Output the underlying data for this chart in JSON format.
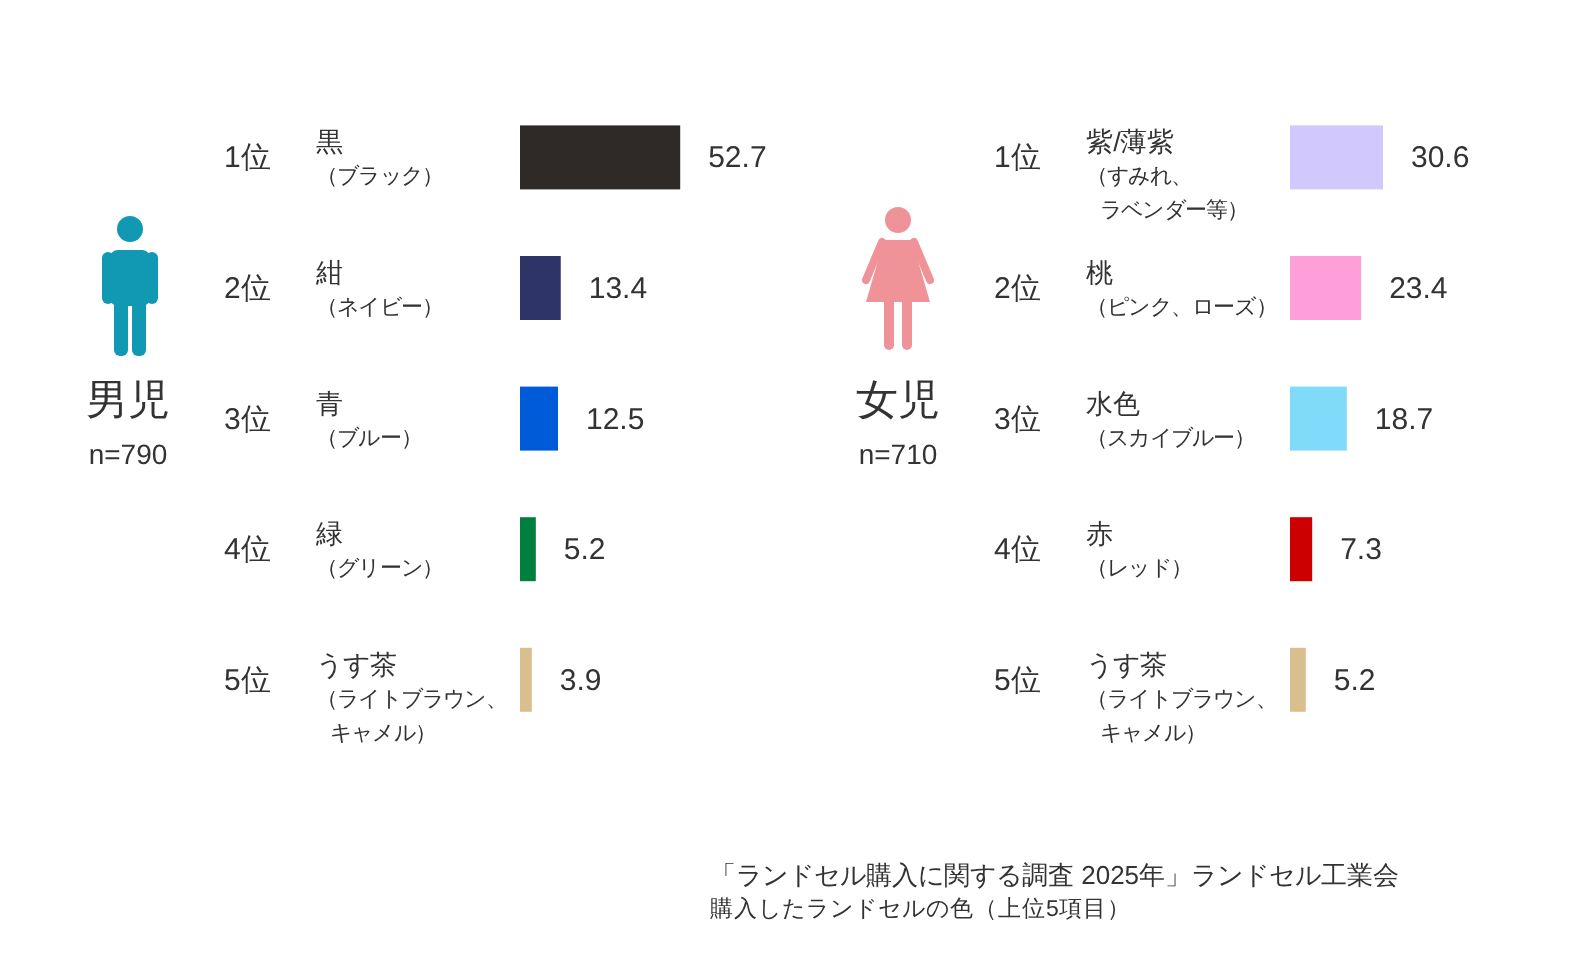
{
  "chart_data": [
    {
      "type": "bar",
      "orientation": "horizontal",
      "title": "男児",
      "subtitle": "n=790",
      "categories": [
        "黒（ブラック）",
        "紺（ネイビー）",
        "青（ブルー）",
        "緑（グリーン）",
        "うす茶（ライトブラウン、キャメル）"
      ],
      "values": [
        52.7,
        13.4,
        12.5,
        5.2,
        3.9
      ],
      "colors": [
        "#2f2a28",
        "#2e3368",
        "#005bd8",
        "#007f3f",
        "#d9bf8f"
      ],
      "data_labels": true,
      "annotations": [
        "1位",
        "2位",
        "3位",
        "4位",
        "5位"
      ]
    },
    {
      "type": "bar",
      "orientation": "horizontal",
      "title": "女児",
      "subtitle": "n=710",
      "categories": [
        "紫/薄紫（すみれ、ラベンダー等）",
        "桃（ピンク、ローズ）",
        "水色（スカイブルー）",
        "赤（レッド）",
        "うす茶（ライトブラウン、キャメル）"
      ],
      "values": [
        30.6,
        23.4,
        18.7,
        7.3,
        5.2
      ],
      "colors": [
        "#d1c9fd",
        "#ff9fd9",
        "#80dbfa",
        "#cc0000",
        "#d9bf8f"
      ],
      "data_labels": true,
      "annotations": [
        "1位",
        "2位",
        "3位",
        "4位",
        "5位",
        "「ランドセル購入に関する調査 2025年」ランドセル工業会",
        "購入したランドセルの色（上位5項目）"
      ]
    }
  ]
}
